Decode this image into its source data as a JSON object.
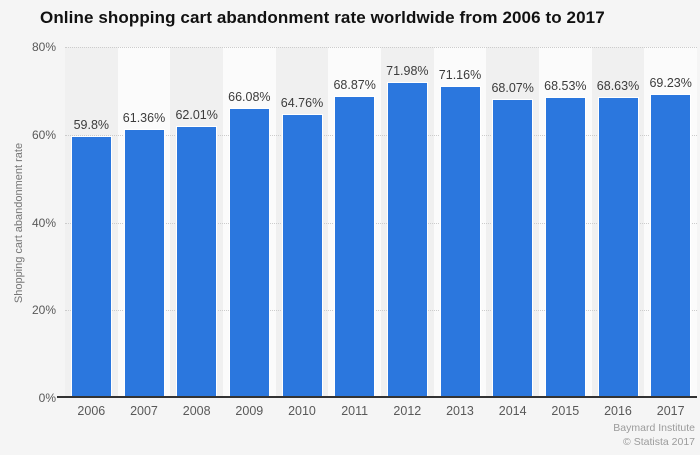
{
  "page": {
    "background_color": "#f5f5f5"
  },
  "header": {
    "title": "Online shopping cart abandonment rate worldwide from 2006 to 2017"
  },
  "footer": {
    "source_line1": "Baymard Institute",
    "source_line2": "© Statista 2017"
  },
  "chart_data": {
    "type": "bar",
    "title": "Online shopping cart abandonment rate worldwide from 2006 to 2017",
    "categories": [
      "2006",
      "2007",
      "2008",
      "2009",
      "2010",
      "2011",
      "2012",
      "2013",
      "2014",
      "2015",
      "2016",
      "2017"
    ],
    "values": [
      59.8,
      61.36,
      62.01,
      66.08,
      64.76,
      68.87,
      71.98,
      71.16,
      68.07,
      68.53,
      68.63,
      69.23
    ],
    "value_labels": [
      "59.8%",
      "61.36%",
      "62.01%",
      "66.08%",
      "64.76%",
      "68.87%",
      "71.98%",
      "71.16%",
      "68.07%",
      "68.53%",
      "68.63%",
      "69.23%"
    ],
    "xlabel": "",
    "ylabel": "Shopping cart abandonment rate",
    "ylim": [
      0,
      80
    ],
    "ytick_values": [
      0,
      20,
      40,
      60,
      80
    ],
    "ytick_labels": [
      "0%",
      "20%",
      "40%",
      "60%",
      "80%"
    ],
    "grid": "horizontal-dotted",
    "legend": "none",
    "bar_color": "#2b77de",
    "bar_border_color": "#ffffff",
    "plot_band_colors": [
      "#f0f0f0",
      "#fbfbfb"
    ],
    "gridline_color": "#cccccc",
    "baseline_color": "#333333"
  }
}
